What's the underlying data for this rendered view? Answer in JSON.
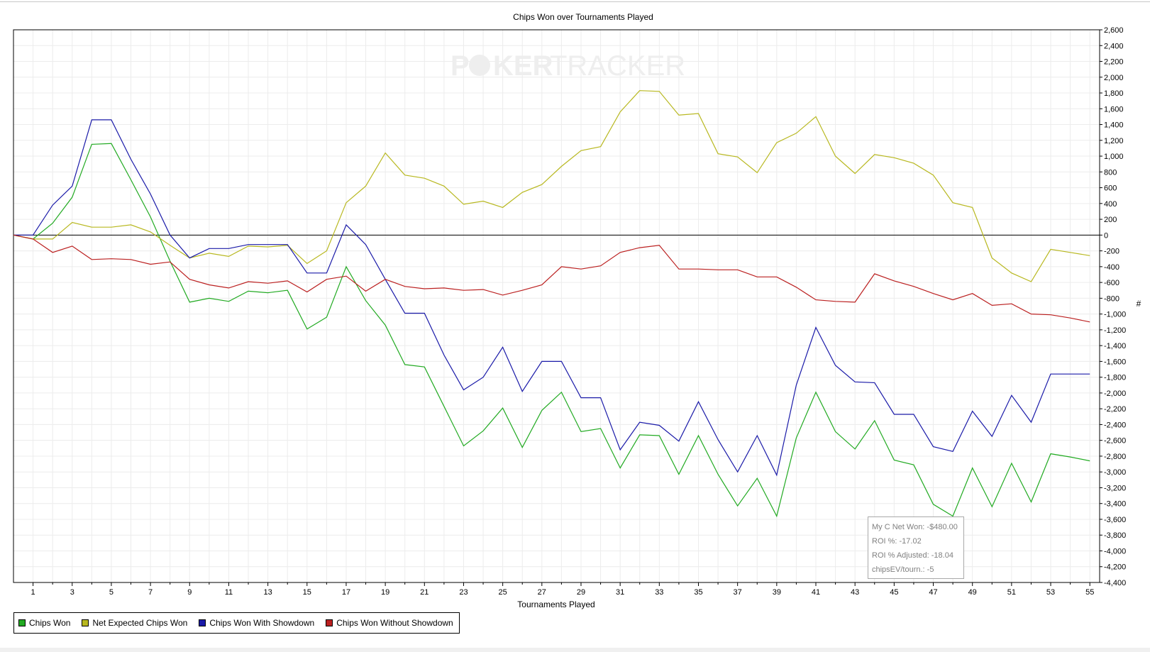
{
  "chart_data": {
    "type": "line",
    "title": "Chips Won over Tournaments Played",
    "xlabel": "Tournaments Played",
    "ylabel": "#",
    "xlim": [
      0,
      55.5
    ],
    "ylim": [
      -4400,
      2600
    ],
    "x_ticks": [
      1,
      3,
      5,
      7,
      9,
      11,
      13,
      15,
      17,
      19,
      21,
      23,
      25,
      27,
      29,
      31,
      33,
      35,
      37,
      39,
      41,
      43,
      45,
      47,
      49,
      51,
      53,
      55
    ],
    "y_ticks": [
      2600,
      2400,
      2200,
      2000,
      1800,
      1600,
      1400,
      1200,
      1000,
      800,
      600,
      400,
      200,
      0,
      -200,
      -400,
      -600,
      -800,
      -1000,
      -1200,
      -1400,
      -1600,
      -1800,
      -2000,
      -2200,
      -2400,
      -2600,
      -2800,
      -3000,
      -3200,
      -3400,
      -3600,
      -3800,
      -4000,
      -4200,
      -4400
    ],
    "grid": true,
    "legend_position": "bottom-left",
    "x": [
      0,
      1,
      2,
      3,
      4,
      5,
      6,
      7,
      8,
      9,
      10,
      11,
      12,
      13,
      14,
      15,
      16,
      17,
      18,
      19,
      20,
      21,
      22,
      23,
      24,
      25,
      26,
      27,
      28,
      29,
      30,
      31,
      32,
      33,
      34,
      35,
      36,
      37,
      38,
      39,
      40,
      41,
      42,
      43,
      44,
      45,
      46,
      47,
      48,
      49,
      50,
      51,
      52,
      53,
      54,
      55
    ],
    "series": [
      {
        "name": "Chips Won",
        "color": "#22aa22",
        "values": [
          0,
          -50,
          150,
          480,
          1150,
          1160,
          700,
          230,
          -330,
          -850,
          -800,
          -840,
          -710,
          -730,
          -700,
          -1190,
          -1040,
          -400,
          -830,
          -1140,
          -1640,
          -1670,
          -2170,
          -2670,
          -2480,
          -2190,
          -2690,
          -2220,
          -1990,
          -2490,
          -2450,
          -2950,
          -2530,
          -2540,
          -3030,
          -2540,
          -3030,
          -3430,
          -3080,
          -3560,
          -2570,
          -1990,
          -2490,
          -2710,
          -2350,
          -2850,
          -2910,
          -3410,
          -3560,
          -2950,
          -3440,
          -2890,
          -3380,
          -2770,
          -2810,
          -2860
        ]
      },
      {
        "name": "Net Expected Chips Won",
        "color": "#b8b820",
        "values": [
          0,
          -50,
          -50,
          160,
          100,
          100,
          130,
          40,
          -130,
          -290,
          -230,
          -270,
          -140,
          -150,
          -130,
          -360,
          -200,
          410,
          620,
          1040,
          760,
          720,
          620,
          390,
          430,
          350,
          540,
          640,
          870,
          1070,
          1120,
          1560,
          1830,
          1820,
          1520,
          1540,
          1030,
          990,
          790,
          1170,
          1290,
          1500,
          1000,
          780,
          1020,
          980,
          910,
          760,
          410,
          350,
          -290,
          -480,
          -590,
          -180,
          -220,
          -260
        ]
      },
      {
        "name": "Chips Won With Showdown",
        "color": "#1a1aa8",
        "values": [
          0,
          0,
          380,
          620,
          1460,
          1460,
          960,
          520,
          0,
          -290,
          -170,
          -170,
          -120,
          -120,
          -120,
          -480,
          -480,
          130,
          -120,
          -560,
          -990,
          -990,
          -1520,
          -1960,
          -1800,
          -1420,
          -1980,
          -1600,
          -1600,
          -2060,
          -2060,
          -2720,
          -2370,
          -2410,
          -2610,
          -2110,
          -2590,
          -3000,
          -2540,
          -3040,
          -1900,
          -1170,
          -1650,
          -1860,
          -1870,
          -2270,
          -2270,
          -2680,
          -2740,
          -2230,
          -2550,
          -2030,
          -2370,
          -1760,
          -1760,
          -1760
        ]
      },
      {
        "name": "Chips Won Without Showdown",
        "color": "#bb2020",
        "values": [
          0,
          -50,
          -220,
          -140,
          -310,
          -300,
          -310,
          -370,
          -340,
          -560,
          -630,
          -670,
          -590,
          -610,
          -580,
          -720,
          -560,
          -520,
          -710,
          -560,
          -650,
          -680,
          -670,
          -700,
          -690,
          -760,
          -700,
          -630,
          -400,
          -430,
          -390,
          -220,
          -160,
          -130,
          -430,
          -430,
          -440,
          -440,
          -530,
          -530,
          -660,
          -820,
          -840,
          -850,
          -490,
          -580,
          -650,
          -740,
          -820,
          -740,
          -890,
          -870,
          -1000,
          -1010,
          -1050,
          -1100
        ]
      }
    ]
  },
  "stats": {
    "net_won": "My C Net Won: -$480.00",
    "roi": "ROI %: -17.02",
    "roi_adjusted": "ROI % Adjusted: -18.04",
    "chips_ev": "chipsEV/tourn.: -5"
  },
  "watermark": "POKERTRACKER"
}
